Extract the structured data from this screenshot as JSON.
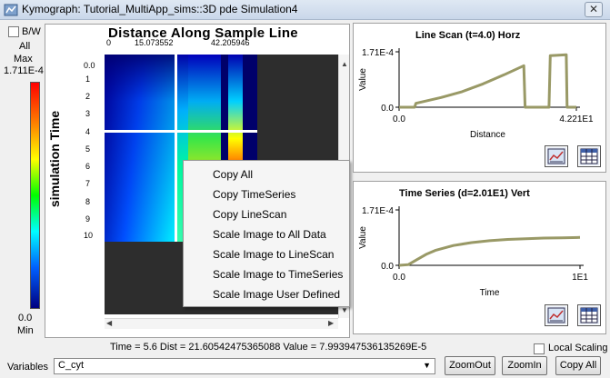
{
  "window": {
    "title": "Kymograph: Tutorial_MultiApp_sims::3D pde Simulation4",
    "close_glyph": "✕"
  },
  "colorscale": {
    "bw_label": "B/W",
    "all_label": "All",
    "max_label": "Max",
    "max_value": "1.711E-4",
    "min_value": "0.0",
    "min_label": "Min"
  },
  "kymograph": {
    "title": "Distance Along Sample Line",
    "x_ticks": [
      "0",
      "15.073552",
      "42.205946"
    ],
    "y_axis_title": "simulation Time",
    "y_ticks": [
      "0.0",
      "1",
      "2",
      "3",
      "4",
      "5",
      "6",
      "7",
      "8",
      "9",
      "10"
    ]
  },
  "context_menu": {
    "items": [
      "Copy All",
      "Copy TimeSeries",
      "Copy LineScan",
      "Scale Image to All Data",
      "Scale Image to LineScan",
      "Scale Image to TimeSeries",
      "Scale Image User Defined"
    ]
  },
  "line_scan": {
    "title": "Line Scan (t=4.0) Horz",
    "chart_data": {
      "type": "line",
      "title": "Line Scan (t=4.0) Horz",
      "xlabel": "Distance",
      "ylabel": "Value",
      "x_tick_labels": [
        "0.0",
        "4.221E1"
      ],
      "y_tick_labels": [
        "0.0",
        "1.71E-4"
      ],
      "xlim": [
        0,
        42.21
      ],
      "ylim": [
        0,
        0.000171
      ],
      "x": [
        0,
        3.7,
        4.0,
        10,
        15,
        20,
        25,
        29.7,
        30,
        35.7,
        36,
        37.5,
        39.8,
        40,
        42.2
      ],
      "y": [
        0,
        0,
        1.2e-05,
        3e-05,
        4.8e-05,
        7.2e-05,
        0.0001,
        0.000128,
        0,
        0,
        0.000159,
        0.00016,
        0.000162,
        0,
        0
      ],
      "color": "#999966"
    }
  },
  "time_series": {
    "title": "Time Series (d=2.01E1) Vert",
    "chart_data": {
      "type": "line",
      "title": "Time Series (d=2.01E1) Vert",
      "xlabel": "Time",
      "ylabel": "Value",
      "x_tick_labels": [
        "0.0",
        "1E1"
      ],
      "y_tick_labels": [
        "0.0",
        "1.71E-4"
      ],
      "xlim": [
        0,
        10
      ],
      "ylim": [
        0,
        0.000171
      ],
      "x": [
        0,
        0.5,
        1,
        1.5,
        2,
        3,
        4,
        5,
        6,
        7,
        8,
        9,
        10
      ],
      "y": [
        0,
        2e-06,
        1.8e-05,
        3.4e-05,
        4.6e-05,
        6.1e-05,
        7e-05,
        7.6e-05,
        8e-05,
        8.2e-05,
        8.4e-05,
        8.5e-05,
        8.6e-05
      ],
      "color": "#999966"
    }
  },
  "status": {
    "readout": "Time = 5.6  Dist = 21.60542475365088  Value = 7.993947536135269E-5",
    "local_scaling_label": "Local Scaling"
  },
  "footer": {
    "variables_label": "Variables",
    "variable_value": "C_cyt",
    "zoom_out": "ZoomOut",
    "zoom_in": "ZoomIn",
    "copy_all": "Copy All"
  }
}
